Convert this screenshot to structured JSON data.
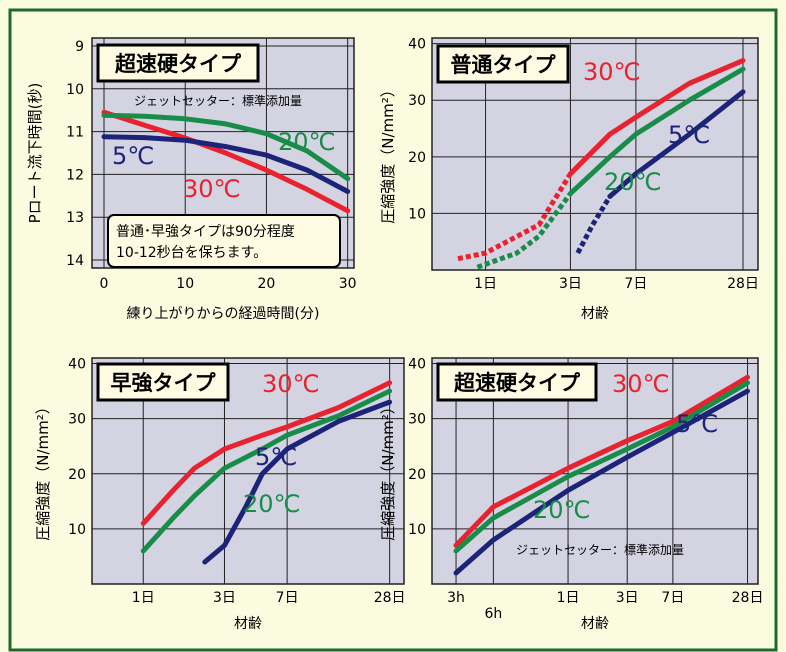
{
  "colors": {
    "page_bg": "#fbfbe0",
    "frame_border": "#1e6a2c",
    "plot_bg": "#d3d3e2",
    "grid": "#222222",
    "title_box_bg": "#fffbe2",
    "red_30C": "#e8222e",
    "green_20C": "#1a8c4a",
    "navy_5C": "#1d2379"
  },
  "chart_data": [
    {
      "id": "p_funnel",
      "type": "line",
      "title": "超速硬タイプ",
      "subtitle": "ジェットセッター：標準添加量",
      "xlabel": "練り上がりからの経過時間(分)",
      "ylabel": "Pロート流下時間(秒)",
      "xlim": [
        0,
        30
      ],
      "ylim": [
        9,
        14
      ],
      "y_inverted": true,
      "x_ticks": [
        0,
        10,
        20,
        30
      ],
      "y_ticks": [
        9,
        10,
        11,
        12,
        13,
        14
      ],
      "grid": true,
      "note_lines": [
        "普通･早強タイプは90分程度",
        "10-12秒台を保ちます。"
      ],
      "series": [
        {
          "name": "30℃",
          "color": "#e8222e",
          "x": [
            0,
            5,
            10,
            15,
            20,
            25,
            30
          ],
          "y": [
            10.55,
            10.85,
            11.15,
            11.5,
            11.9,
            12.35,
            12.85
          ]
        },
        {
          "name": "20℃",
          "color": "#1a8c4a",
          "x": [
            0,
            5,
            10,
            15,
            20,
            25,
            30
          ],
          "y": [
            10.62,
            10.64,
            10.7,
            10.82,
            11.05,
            11.45,
            12.1
          ]
        },
        {
          "name": "5℃",
          "color": "#1d2379",
          "x": [
            0,
            5,
            10,
            15,
            20,
            25,
            30
          ],
          "y": [
            11.12,
            11.14,
            11.2,
            11.35,
            11.55,
            11.9,
            12.4
          ]
        }
      ]
    },
    {
      "id": "normal",
      "type": "line",
      "title": "普通タイプ",
      "xlabel": "材齢",
      "ylabel": "圧縮強度（N/mm²）",
      "x_scale": "log-days",
      "x_ticks": [
        {
          "v": 1,
          "label": "1日"
        },
        {
          "v": 3,
          "label": "3日"
        },
        {
          "v": 7,
          "label": "7日"
        },
        {
          "v": 28,
          "label": "28日"
        }
      ],
      "y_ticks": [
        10,
        20,
        30,
        40
      ],
      "ylim": [
        0,
        41
      ],
      "grid": true,
      "series": [
        {
          "name": "30℃",
          "color": "#e8222e",
          "dashed_until": 3,
          "x": [
            0.7,
            1,
            2,
            3,
            5,
            7,
            14,
            28
          ],
          "y": [
            2,
            3,
            8,
            17,
            24,
            27,
            33,
            37
          ]
        },
        {
          "name": "20℃",
          "color": "#1a8c4a",
          "dashed_until": 3,
          "x": [
            0.9,
            1.5,
            2,
            3,
            5,
            7,
            14,
            28
          ],
          "y": [
            0.5,
            3,
            6,
            13.5,
            20,
            24,
            30,
            35.5
          ]
        },
        {
          "name": "5℃",
          "color": "#1d2379",
          "dashed_until": 5,
          "x": [
            3.3,
            4,
            5,
            7,
            14,
            28
          ],
          "y": [
            3,
            8,
            13,
            17,
            24,
            31.5
          ]
        }
      ]
    },
    {
      "id": "early",
      "type": "line",
      "title": "早強タイプ",
      "xlabel": "材齢",
      "ylabel": "圧縮強度（N/mm²）",
      "x_scale": "log-days",
      "x_ticks": [
        {
          "v": 1,
          "label": "1日"
        },
        {
          "v": 3,
          "label": "3日"
        },
        {
          "v": 7,
          "label": "7日"
        },
        {
          "v": 28,
          "label": "28日"
        }
      ],
      "y_ticks": [
        10,
        20,
        30,
        40
      ],
      "ylim": [
        0,
        41
      ],
      "grid": true,
      "series": [
        {
          "name": "30℃",
          "color": "#e8222e",
          "x": [
            1,
            1.5,
            2,
            3,
            5,
            7,
            14,
            28
          ],
          "y": [
            11,
            17,
            21,
            24.5,
            27,
            28.5,
            32,
            36.5
          ]
        },
        {
          "name": "20℃",
          "color": "#1a8c4a",
          "x": [
            1,
            1.5,
            2,
            3,
            5,
            7,
            14,
            28
          ],
          "y": [
            6,
            12,
            16,
            21,
            24.5,
            27,
            30.5,
            35
          ]
        },
        {
          "name": "5℃",
          "color": "#1d2379",
          "x": [
            2.3,
            3,
            4,
            5,
            7,
            14,
            28
          ],
          "y": [
            4,
            7,
            14,
            20,
            24.5,
            29.5,
            33
          ]
        }
      ]
    },
    {
      "id": "ultra",
      "type": "line",
      "title": "超速硬タイプ",
      "subtitle": "ジェットセッター：標準添加量",
      "xlabel": "材齢",
      "ylabel": "圧縮強度（N/mm²）",
      "x_scale": "log-days",
      "x_ticks": [
        {
          "v": 0.125,
          "label": "3h"
        },
        {
          "v": 0.25,
          "label": "6h"
        },
        {
          "v": 1,
          "label": "1日"
        },
        {
          "v": 3,
          "label": "3日"
        },
        {
          "v": 7,
          "label": "7日"
        },
        {
          "v": 28,
          "label": "28日"
        }
      ],
      "y_ticks": [
        10,
        20,
        30,
        40
      ],
      "ylim": [
        0,
        41
      ],
      "grid": true,
      "series": [
        {
          "name": "30℃",
          "color": "#e8222e",
          "x": [
            0.125,
            0.25,
            1,
            3,
            7,
            28
          ],
          "y": [
            7,
            14,
            21,
            26,
            29.5,
            37.5
          ]
        },
        {
          "name": "20℃",
          "color": "#1a8c4a",
          "x": [
            0.125,
            0.25,
            1,
            3,
            7,
            28
          ],
          "y": [
            6,
            12,
            19.5,
            24.5,
            28.5,
            36.5
          ]
        },
        {
          "name": "5℃",
          "color": "#1d2379",
          "x": [
            0.125,
            0.25,
            1,
            3,
            7,
            28
          ],
          "y": [
            2,
            8,
            17,
            23,
            27.5,
            35
          ]
        }
      ]
    }
  ]
}
